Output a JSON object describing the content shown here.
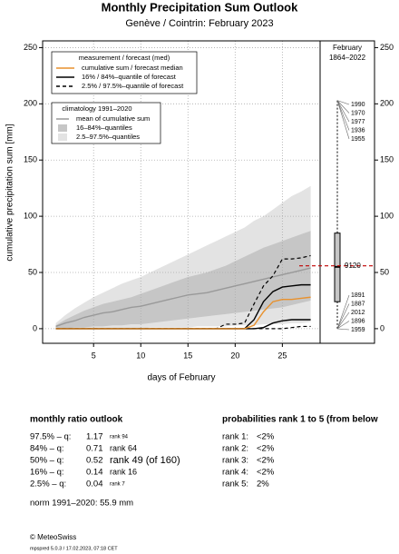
{
  "chart_data": {
    "type": "line",
    "title": "Monthly Precipitation Sum Outlook",
    "subtitle": "Genève / Cointrin: February 2023",
    "x_label": "days of February",
    "y_label": "cumulative precipitation sum [mm]",
    "x": [
      1,
      2,
      3,
      4,
      5,
      6,
      7,
      8,
      9,
      10,
      11,
      12,
      13,
      14,
      15,
      16,
      17,
      18,
      19,
      20,
      21,
      22,
      23,
      24,
      25,
      26,
      27,
      28
    ],
    "xlim": [
      -0.4,
      29.0
    ],
    "xticks": [
      5,
      10,
      15,
      20,
      25
    ],
    "ylim": [
      -13,
      256
    ],
    "yticks": [
      0,
      50,
      100,
      150,
      200,
      250
    ],
    "grid": true,
    "bands": [
      {
        "name": "2.5–97.5%–quantiles",
        "color": "#e3e3e3",
        "lower": [
          0,
          0,
          0,
          0,
          0,
          0,
          0,
          0,
          0,
          0,
          1,
          1,
          1,
          1,
          1,
          2,
          2,
          2,
          2,
          3,
          3,
          3,
          4,
          4,
          4,
          5,
          5,
          6
        ],
        "upper": [
          5,
          12,
          18,
          23,
          28,
          32,
          36,
          40,
          43,
          46,
          50,
          54,
          58,
          62,
          66,
          70,
          74,
          78,
          82,
          86,
          90,
          96,
          100,
          106,
          112,
          118,
          122,
          127
        ]
      },
      {
        "name": "16–84%–quantiles",
        "color": "#c6c6c6",
        "lower": [
          0,
          0,
          1,
          1,
          2,
          2,
          3,
          3,
          4,
          4,
          5,
          6,
          7,
          8,
          9,
          10,
          11,
          12,
          13,
          14,
          15,
          16,
          17,
          18,
          19,
          21,
          23,
          25
        ],
        "upper": [
          3,
          8,
          12,
          16,
          19,
          22,
          24,
          26,
          28,
          31,
          34,
          37,
          40,
          43,
          46,
          48,
          50,
          53,
          56,
          60,
          64,
          68,
          72,
          75,
          78,
          81,
          84,
          87
        ]
      }
    ],
    "series": [
      {
        "name": "mean of cumulative sum",
        "color": "#999999",
        "dash": "solid",
        "values": [
          2,
          5,
          7,
          10,
          12,
          14,
          15,
          17,
          19,
          20,
          22,
          24,
          26,
          28,
          30,
          31,
          32,
          34,
          36,
          38,
          40,
          42,
          44,
          46,
          48,
          50,
          52,
          54
        ]
      },
      {
        "name": "2.5% / 97.5%–quantile of forecast",
        "color": "#000000",
        "dash": "dashed",
        "values": [
          0,
          0,
          0,
          0,
          0,
          0,
          0,
          0,
          0,
          0,
          0,
          0,
          0,
          0,
          0,
          0,
          0,
          0,
          0,
          0,
          0,
          0,
          0,
          0,
          0,
          1,
          2,
          2
        ]
      },
      {
        "name": "2.5% / 97.5%–quantile of forecast",
        "color": "#000000",
        "dash": "dashed",
        "values": [
          0,
          0,
          0,
          0,
          0,
          0,
          0,
          0,
          0,
          0,
          0,
          0,
          0,
          0,
          0,
          0,
          0,
          0,
          4,
          4,
          5,
          22,
          38,
          47,
          62,
          62,
          63,
          65
        ]
      },
      {
        "name": "16% / 84%–quantile of forecast",
        "color": "#000000",
        "dash": "solid",
        "values": [
          0,
          0,
          0,
          0,
          0,
          0,
          0,
          0,
          0,
          0,
          0,
          0,
          0,
          0,
          0,
          0,
          0,
          0,
          0,
          0,
          0,
          0,
          1,
          5,
          7,
          8,
          8,
          8
        ]
      },
      {
        "name": "16% / 84%–quantile of forecast",
        "color": "#000000",
        "dash": "solid",
        "values": [
          0,
          0,
          0,
          0,
          0,
          0,
          0,
          0,
          0,
          0,
          0,
          0,
          0,
          0,
          0,
          0,
          0,
          0,
          0,
          0,
          0,
          8,
          24,
          33,
          37,
          38,
          39,
          39
        ]
      },
      {
        "name": "cumulative sum / forecast median",
        "color": "#e8912d",
        "dash": "solid",
        "values": [
          0,
          0,
          0,
          0,
          0,
          0,
          0,
          0,
          0,
          0,
          0,
          0,
          0,
          0,
          0,
          0,
          0,
          0,
          0,
          0,
          0,
          3,
          15,
          24,
          26,
          26,
          27,
          28
        ]
      }
    ],
    "legend_forecast_title": "measurement / forecast (med)",
    "legend_climatology_title": "climatology 1991–2020",
    "history": {
      "title": [
        "February",
        "1864–2022"
      ],
      "boxplot": {
        "min": 0,
        "q1": 24,
        "median": 55,
        "q3": 85,
        "max": 203
      },
      "norm": 55.9,
      "norm_color": "#c00000",
      "norm_label": "9120",
      "top_years": [
        "1990",
        "1970",
        "1977",
        "1936",
        "1955"
      ],
      "bottom_years": [
        "1891",
        "1887",
        "2012",
        "1896",
        "1959"
      ]
    }
  },
  "outlook": {
    "title": "monthly ratio outlook",
    "rows": [
      {
        "label": "97.5% – q:",
        "value": "1.17",
        "rank": "rank 94",
        "size": 6
      },
      {
        "label": "84% – q:",
        "value": "0.71",
        "rank": "rank 64",
        "size": 9
      },
      {
        "label": "50% – q:",
        "value": "0.52",
        "rank": "rank 49 (of 160)",
        "size": 11
      },
      {
        "label": "16% – q:",
        "value": "0.14",
        "rank": "rank 16",
        "size": 9
      },
      {
        "label": "2.5% – q:",
        "value": "0.04",
        "rank": "rank 7",
        "size": 6
      }
    ],
    "rank_color": "#e8912d",
    "norm": "norm 1991–2020: 55.9 mm",
    "probabilities_title": "probabilities rank 1 to 5 (from below",
    "probabilities": [
      [
        "rank 1:",
        "<2%"
      ],
      [
        "rank 2:",
        "<2%"
      ],
      [
        "rank 3:",
        "<2%"
      ],
      [
        "rank 4:",
        "<2%"
      ],
      [
        "rank 5:",
        "2%"
      ]
    ],
    "copyright": "© MeteoSwiss",
    "version": "mpspred 5.0.3 / 17.02.2023, 07:18 CET"
  }
}
